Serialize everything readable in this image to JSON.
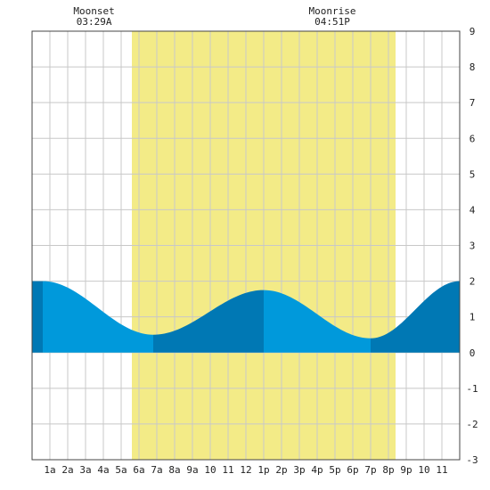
{
  "chart_data": {
    "type": "area",
    "title": "",
    "xlabel": "",
    "ylabel": "",
    "xlim": [
      0,
      24
    ],
    "ylim": [
      -3,
      9
    ],
    "y_ticks": [
      "9",
      "8",
      "7",
      "6",
      "5",
      "4",
      "3",
      "2",
      "1",
      "0",
      "-1",
      "-2",
      "-3"
    ],
    "x_ticks": [
      {
        "hour": 1,
        "label": "1a"
      },
      {
        "hour": 2,
        "label": "2a"
      },
      {
        "hour": 3,
        "label": "3a"
      },
      {
        "hour": 4,
        "label": "4a"
      },
      {
        "hour": 5,
        "label": "5a"
      },
      {
        "hour": 6,
        "label": "6a"
      },
      {
        "hour": 7,
        "label": "7a"
      },
      {
        "hour": 8,
        "label": "8a"
      },
      {
        "hour": 9,
        "label": "9a"
      },
      {
        "hour": 10,
        "label": "10"
      },
      {
        "hour": 11,
        "label": "11"
      },
      {
        "hour": 12,
        "label": "12"
      },
      {
        "hour": 13,
        "label": "1p"
      },
      {
        "hour": 14,
        "label": "2p"
      },
      {
        "hour": 15,
        "label": "3p"
      },
      {
        "hour": 16,
        "label": "4p"
      },
      {
        "hour": 17,
        "label": "5p"
      },
      {
        "hour": 18,
        "label": "6p"
      },
      {
        "hour": 19,
        "label": "7p"
      },
      {
        "hour": 20,
        "label": "8p"
      },
      {
        "hour": 21,
        "label": "9p"
      },
      {
        "hour": 22,
        "label": "10"
      },
      {
        "hour": 23,
        "label": "11"
      }
    ],
    "grid": true,
    "daylight": {
      "start_hour": 5.6,
      "end_hour": 20.4,
      "color": "#f3eb87"
    },
    "extremes": [
      {
        "hour": 0.6,
        "height": 2.0
      },
      {
        "hour": 6.8,
        "height": 0.5
      },
      {
        "hour": 13.0,
        "height": 1.75
      },
      {
        "hour": 19.0,
        "height": 0.4
      },
      {
        "hour": 24.0,
        "height": 2.0
      }
    ],
    "tide_colors": {
      "rising": "#0078b4",
      "falling": "#0099db"
    },
    "annotations": [
      {
        "id": "moonset",
        "hour": 3.48,
        "title": "Moonset",
        "time": "03:29A"
      },
      {
        "id": "moonrise",
        "hour": 16.85,
        "title": "Moonrise",
        "time": "04:51P"
      }
    ],
    "colors": {
      "grid": "#c8c8c8",
      "border": "#444444",
      "background": "#ffffff"
    }
  }
}
